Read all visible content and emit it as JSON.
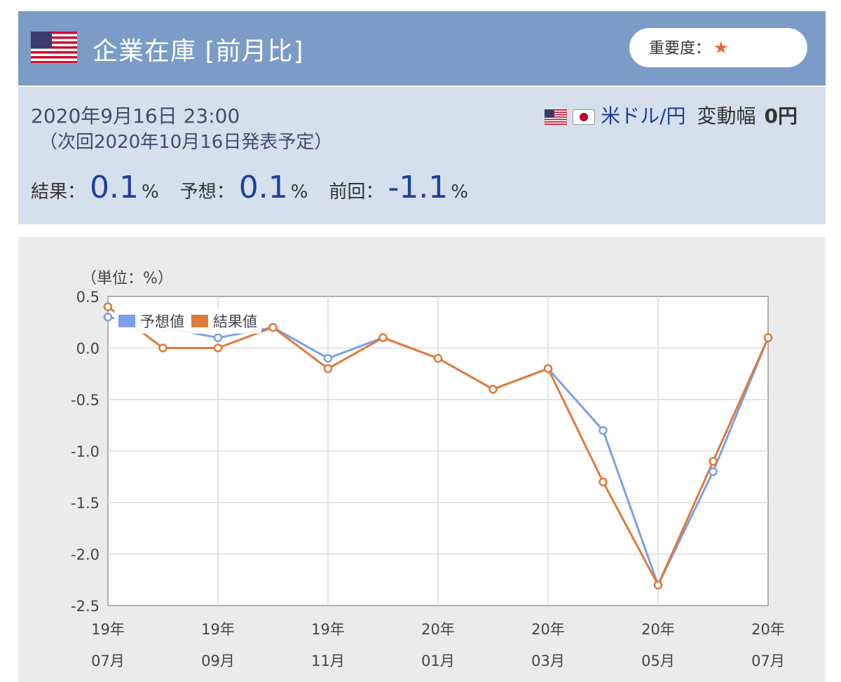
{
  "header": {
    "title": "企業在庫 [前月比]",
    "importance_label": "重要度：",
    "importance_star": "★",
    "flag_icon": "us-flag-icon"
  },
  "info": {
    "release_datetime": "2020年9月16日 23:00",
    "next_release": "（次回2020年10月16日発表予定）",
    "pair": "米ドル/円",
    "volatility_label": "変動幅",
    "volatility_value": "0円",
    "result_label": "結果：",
    "result_value": "0.1",
    "forecast_label": "予想：",
    "forecast_value": "0.1",
    "previous_label": "前回：",
    "previous_value": "-1.1",
    "percent": "%"
  },
  "colors": {
    "header_bg": "#7a9cc6",
    "info_bg": "#d6e0ec",
    "forecast": "#7b9fe8",
    "result": "#e07a3a",
    "value_text": "#1f3fa0"
  },
  "chart_data": {
    "type": "line",
    "unit_label": "（単位：%）",
    "categories": [
      "19/07",
      "19/08",
      "19/09",
      "19/10",
      "19/11",
      "19/12",
      "20/01",
      "20/02",
      "20/03",
      "20/04",
      "20/05",
      "20/06",
      "20/07"
    ],
    "tick_labels": [
      {
        "index": 0,
        "year": "19年",
        "month": "07月"
      },
      {
        "index": 2,
        "year": "19年",
        "month": "09月"
      },
      {
        "index": 4,
        "year": "19年",
        "month": "11月"
      },
      {
        "index": 6,
        "year": "20年",
        "month": "01月"
      },
      {
        "index": 8,
        "year": "20年",
        "month": "03月"
      },
      {
        "index": 10,
        "year": "20年",
        "month": "05月"
      },
      {
        "index": 12,
        "year": "20年",
        "month": "07月"
      }
    ],
    "series": [
      {
        "name": "予想値",
        "color": "#7b9fe8",
        "values": [
          0.3,
          0.2,
          0.1,
          0.2,
          -0.1,
          0.1,
          -0.1,
          -0.4,
          -0.2,
          -0.8,
          -2.3,
          -1.2,
          0.1
        ]
      },
      {
        "name": "結果値",
        "color": "#e07a3a",
        "values": [
          0.4,
          0.0,
          0.0,
          0.2,
          -0.2,
          0.1,
          -0.1,
          -0.4,
          -0.2,
          -1.3,
          -2.3,
          -1.1,
          0.1
        ]
      }
    ],
    "ylim": [
      -2.5,
      0.5
    ],
    "yticks": [
      "0.5",
      "0.0",
      "-0.5",
      "-1.0",
      "-1.5",
      "-2.0",
      "-2.5"
    ],
    "grid": true,
    "legend_position": "top-left"
  }
}
